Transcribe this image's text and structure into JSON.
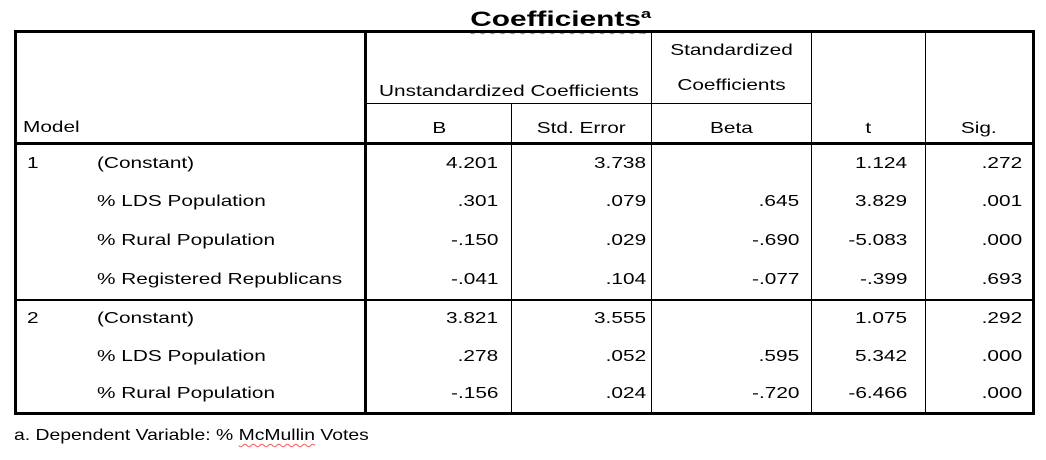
{
  "title": {
    "text": "Coefficients",
    "superscript": "a"
  },
  "table": {
    "header": {
      "model": "Model",
      "unstandardized": "Unstandardized Coefficients",
      "standardized": "Standardized Coefficients",
      "b": "B",
      "std_error": "Std. Error",
      "beta": "Beta",
      "t": "t",
      "sig": "Sig."
    },
    "rows": [
      {
        "model": "1",
        "label": "(Constant)",
        "b": "4.201",
        "std_error": "3.738",
        "beta": "",
        "t": "1.124",
        "sig": ".272"
      },
      {
        "model": "",
        "label": "% LDS Population",
        "b": ".301",
        "std_error": ".079",
        "beta": ".645",
        "t": "3.829",
        "sig": ".001"
      },
      {
        "model": "",
        "label": "% Rural Population",
        "b": "-.150",
        "std_error": ".029",
        "beta": "-.690",
        "t": "-5.083",
        "sig": ".000"
      },
      {
        "model": "",
        "label": "% Registered Republicans",
        "b": "-.041",
        "std_error": ".104",
        "beta": "-.077",
        "t": "-.399",
        "sig": ".693"
      },
      {
        "model": "2",
        "label": "(Constant)",
        "b": "3.821",
        "std_error": "3.555",
        "beta": "",
        "t": "1.075",
        "sig": ".292"
      },
      {
        "model": "",
        "label": "% LDS Population",
        "b": ".278",
        "std_error": ".052",
        "beta": ".595",
        "t": "5.342",
        "sig": ".000"
      },
      {
        "model": "",
        "label": "% Rural Population",
        "b": "-.156",
        "std_error": ".024",
        "beta": "-.720",
        "t": "-6.466",
        "sig": ".000"
      }
    ]
  },
  "footnote": {
    "prefix": "a. Dependent Variable: % ",
    "flagged_word": "McMullin",
    "suffix": " Votes"
  },
  "colors": {
    "text": "#000000",
    "border": "#000000",
    "background": "#ffffff",
    "spellcheck_underline": "#ff5a5a"
  }
}
